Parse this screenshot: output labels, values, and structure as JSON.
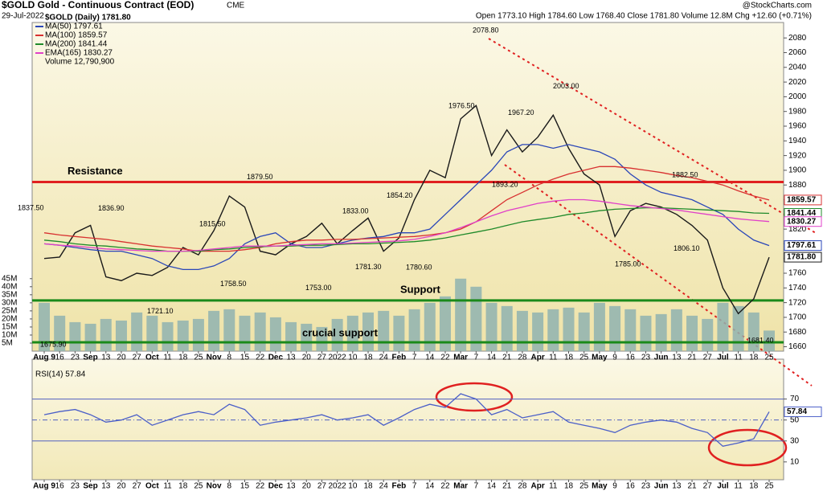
{
  "chart_data": [
    {
      "type": "line",
      "title": "$GOLD Gold - Continuous Contract (EOD)",
      "exchange": "CME",
      "date": "29-Jul-2022",
      "quote": "Open 1773.10  High 1784.60  Low 1768.40  Close 1781.80  Volume 12.8M  Chg +12.60 (+0.71%)",
      "source": "@StockCharts.com",
      "categories": [
        "Aug 9",
        "16",
        "23",
        "Sep",
        "13",
        "20",
        "27",
        "Oct",
        "11",
        "18",
        "25",
        "Nov",
        "8",
        "15",
        "22",
        "Dec",
        "13",
        "20",
        "27",
        "2022",
        "10",
        "18",
        "24",
        "Feb",
        "7",
        "14",
        "22",
        "Mar",
        "7",
        "14",
        "21",
        "28",
        "Apr",
        "11",
        "18",
        "25",
        "May",
        "9",
        "16",
        "23",
        "Jun",
        "13",
        "21",
        "27",
        "Jul",
        "11",
        "18",
        "25"
      ],
      "series": [
        {
          "name": "$GOLD (Daily) 1781.80",
          "color": "#1a1a1a",
          "values": [
            1780,
            1782,
            1815,
            1825,
            1755,
            1750,
            1760,
            1757,
            1768,
            1795,
            1785,
            1818,
            1865,
            1850,
            1790,
            1785,
            1800,
            1810,
            1828,
            1800,
            1818,
            1835,
            1790,
            1808,
            1860,
            1900,
            1890,
            1970,
            1988,
            1920,
            1955,
            1925,
            1945,
            1975,
            1930,
            1895,
            1880,
            1810,
            1845,
            1855,
            1850,
            1840,
            1825,
            1805,
            1740,
            1705,
            1725,
            1781.8
          ]
        },
        {
          "name": "MA(50) 1797.61",
          "color": "#2a46b8",
          "values": [
            1800,
            1798,
            1795,
            1792,
            1790,
            1790,
            1785,
            1780,
            1770,
            1765,
            1765,
            1770,
            1780,
            1800,
            1810,
            1815,
            1800,
            1795,
            1795,
            1800,
            1805,
            1808,
            1810,
            1815,
            1815,
            1820,
            1840,
            1860,
            1880,
            1900,
            1925,
            1935,
            1935,
            1930,
            1935,
            1930,
            1925,
            1915,
            1895,
            1880,
            1870,
            1865,
            1860,
            1850,
            1840,
            1820,
            1805,
            1797.61
          ]
        },
        {
          "name": "MA(100) 1859.57",
          "color": "#d83030",
          "values": [
            1815,
            1812,
            1810,
            1808,
            1806,
            1803,
            1800,
            1797,
            1795,
            1793,
            1790,
            1790,
            1790,
            1792,
            1795,
            1800,
            1803,
            1805,
            1805,
            1806,
            1806,
            1807,
            1808,
            1809,
            1810,
            1812,
            1815,
            1820,
            1830,
            1845,
            1860,
            1870,
            1880,
            1888,
            1895,
            1900,
            1905,
            1905,
            1903,
            1900,
            1897,
            1893,
            1890,
            1885,
            1880,
            1872,
            1865,
            1859.57
          ]
        },
        {
          "name": "MA(200) 1841.44",
          "color": "#1f8a2a",
          "values": [
            1805,
            1803,
            1800,
            1798,
            1797,
            1795,
            1793,
            1792,
            1790,
            1790,
            1790,
            1792,
            1793,
            1795,
            1796,
            1797,
            1797,
            1798,
            1798,
            1799,
            1800,
            1800,
            1801,
            1802,
            1803,
            1805,
            1808,
            1812,
            1816,
            1820,
            1825,
            1830,
            1833,
            1836,
            1840,
            1842,
            1845,
            1847,
            1848,
            1849,
            1849,
            1848,
            1847,
            1846,
            1845,
            1844,
            1842,
            1841.44
          ]
        },
        {
          "name": "EMA(165) 1830.27",
          "color": "#e040c8",
          "values": [
            1800,
            1798,
            1797,
            1795,
            1793,
            1792,
            1791,
            1790,
            1790,
            1790,
            1791,
            1793,
            1795,
            1797,
            1797,
            1797,
            1798,
            1799,
            1800,
            1800,
            1801,
            1802,
            1803,
            1804,
            1806,
            1810,
            1815,
            1822,
            1830,
            1838,
            1845,
            1850,
            1855,
            1858,
            1860,
            1860,
            1858,
            1855,
            1852,
            1850,
            1848,
            1846,
            1843,
            1840,
            1837,
            1834,
            1832,
            1830.27
          ]
        },
        {
          "name": "Volume 12,790,900",
          "color": "#8fb3b0",
          "type": "bar",
          "axis": "y2",
          "values": [
            30,
            22,
            18,
            17,
            20,
            19,
            24,
            22,
            18,
            19,
            20,
            25,
            26,
            22,
            24,
            21,
            18,
            17,
            15,
            20,
            22,
            24,
            25,
            22,
            26,
            30,
            34,
            45,
            40,
            30,
            28,
            25,
            24,
            26,
            27,
            24,
            30,
            28,
            26,
            22,
            23,
            26,
            22,
            20,
            30,
            28,
            24,
            12.79
          ]
        }
      ],
      "ylim": [
        1654,
        2101
      ],
      "yticks": [
        1660,
        1680,
        1700,
        1720,
        1740,
        1760,
        1780,
        1800,
        1820,
        1840,
        1860,
        1880,
        1900,
        1920,
        1940,
        1960,
        1980,
        2000,
        2020,
        2040,
        2060,
        2080
      ],
      "y2lim": [
        0,
        204
      ],
      "y2ticks": [
        {
          "value": 5,
          "label": "5M"
        },
        {
          "value": 10,
          "label": "10M"
        },
        {
          "value": 15,
          "label": "15M"
        },
        {
          "value": 20,
          "label": "20M"
        },
        {
          "value": 25,
          "label": "25M"
        },
        {
          "value": 30,
          "label": "30M"
        },
        {
          "value": 35,
          "label": "35M"
        },
        {
          "value": 40,
          "label": "40M"
        },
        {
          "value": 45,
          "label": "45M"
        }
      ],
      "levels": [
        {
          "label": "Resistance",
          "value": 1884,
          "color": "#e02020"
        },
        {
          "label": "Support",
          "value": 1723,
          "color": "#1a8a1a"
        },
        {
          "label": "crucial support",
          "value": 1666,
          "color": "#1a8a1a"
        }
      ],
      "annotations": [
        {
          "value": 1837.5,
          "label": "1837.50"
        },
        {
          "value": 1836.9,
          "label": "1836.90"
        },
        {
          "value": 1815.5,
          "label": "1815.50"
        },
        {
          "value": 1879.5,
          "label": "1879.50"
        },
        {
          "value": 1758.5,
          "label": "1758.50"
        },
        {
          "value": 1721.1,
          "label": "1721.10"
        },
        {
          "value": 1675.9,
          "label": "1675.90"
        },
        {
          "value": 1753,
          "label": "1753.00"
        },
        {
          "value": 1833,
          "label": "1833.00"
        },
        {
          "value": 1854.2,
          "label": "1854.20"
        },
        {
          "value": 1781.3,
          "label": "1781.30"
        },
        {
          "value": 1780.6,
          "label": "1780.60"
        },
        {
          "value": 1976.5,
          "label": "1976.50"
        },
        {
          "value": 2078.8,
          "label": "2078.80"
        },
        {
          "value": 1967.2,
          "label": "1967.20"
        },
        {
          "value": 1893.2,
          "label": "1893.20"
        },
        {
          "value": 2003,
          "label": "2003.00"
        },
        {
          "value": 1785,
          "label": "1785.00"
        },
        {
          "value": 1882.5,
          "label": "1882.50"
        },
        {
          "value": 1806.1,
          "label": "1806.10"
        },
        {
          "value": 1681.4,
          "label": "1681.40"
        }
      ],
      "price_tags": [
        {
          "value": 1859.57,
          "label": "1859.57",
          "color": "#d83030"
        },
        {
          "value": 1841.44,
          "label": "1841.44",
          "color": "#1f8a2a"
        },
        {
          "value": 1830.27,
          "label": "1830.27",
          "color": "#e040c8"
        },
        {
          "value": 1797.61,
          "label": "1797.61",
          "color": "#2a46b8"
        },
        {
          "value": 1781.8,
          "label": "1781.80",
          "color": "#1a1a1a"
        }
      ]
    },
    {
      "type": "line",
      "title": "RSI(14) 57.84",
      "series": [
        {
          "name": "RSI(14) 57.84",
          "color": "#4b5fc8",
          "values": [
            55,
            58,
            60,
            55,
            48,
            50,
            55,
            45,
            50,
            55,
            58,
            55,
            65,
            60,
            45,
            48,
            50,
            52,
            55,
            50,
            52,
            55,
            45,
            52,
            60,
            65,
            62,
            75,
            70,
            55,
            60,
            52,
            55,
            58,
            48,
            45,
            42,
            38,
            45,
            48,
            50,
            48,
            42,
            38,
            25,
            28,
            32,
            57.84
          ]
        }
      ],
      "ylim": [
        -7,
        108
      ],
      "yticks": [
        10,
        30,
        50,
        70
      ],
      "levels": [
        70,
        30,
        50
      ],
      "price_tags": [
        {
          "value": 57.84,
          "label": "57.84",
          "color": "#4b5fc8"
        }
      ]
    }
  ]
}
